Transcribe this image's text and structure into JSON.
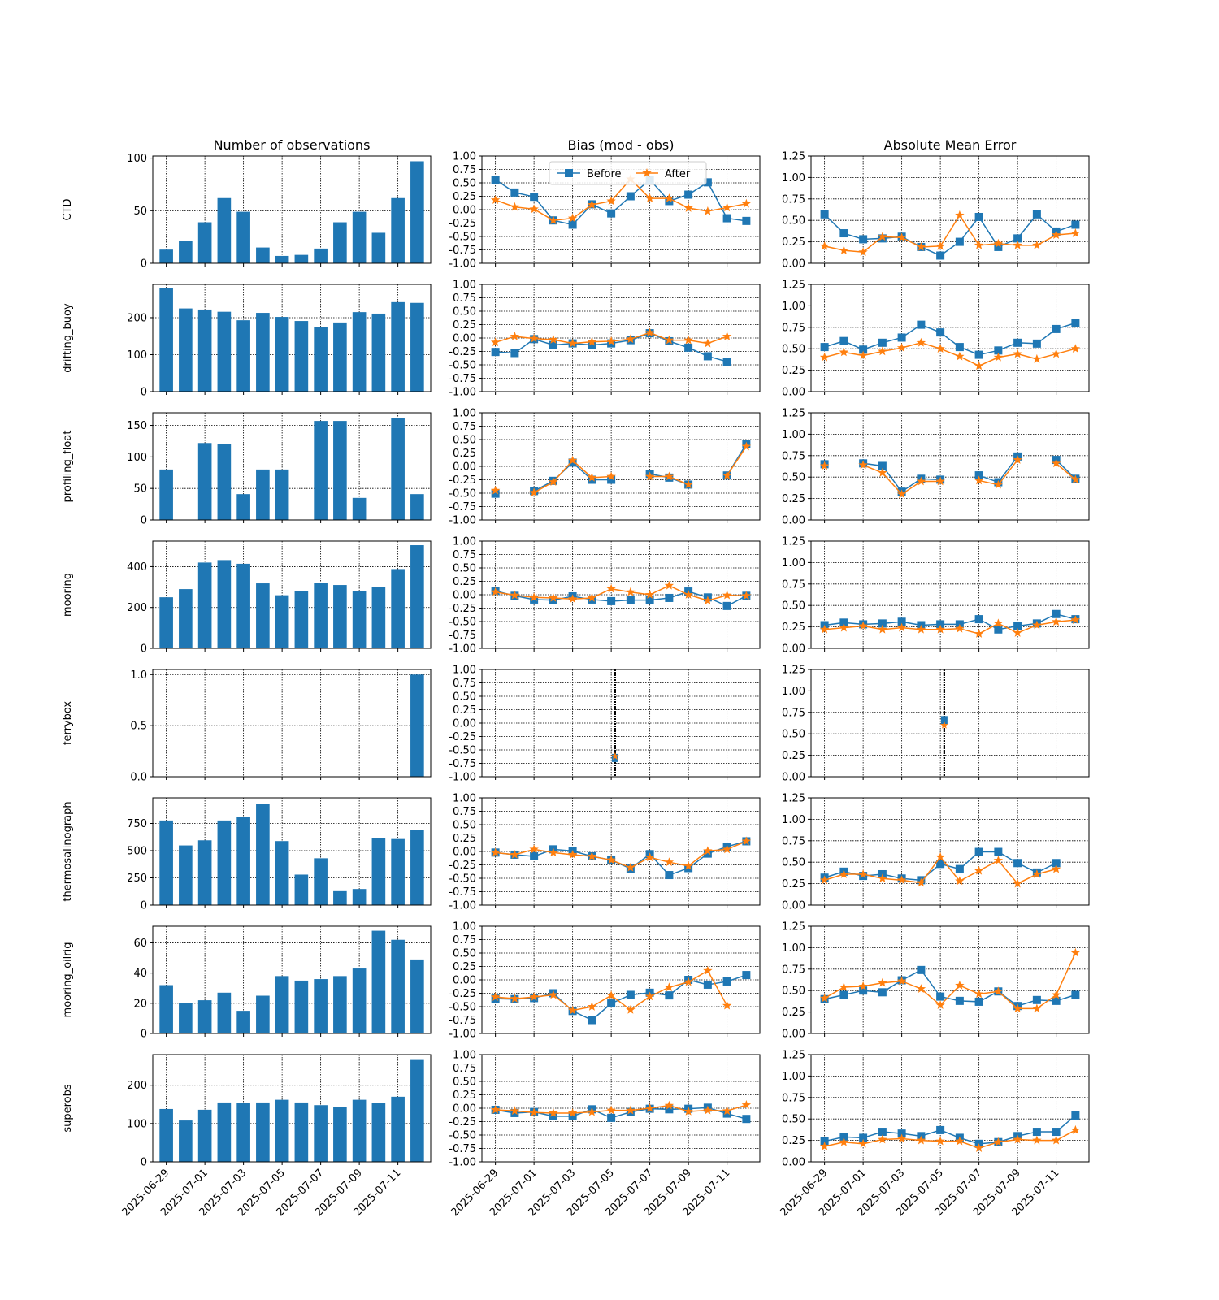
{
  "chart_data": {
    "type": "figure",
    "dates": [
      "2025-06-29",
      "2025-06-30",
      "2025-07-01",
      "2025-07-02",
      "2025-07-03",
      "2025-07-04",
      "2025-07-05",
      "2025-07-06",
      "2025-07-07",
      "2025-07-08",
      "2025-07-09",
      "2025-07-10",
      "2025-07-11",
      "2025-07-12"
    ],
    "date_ticks": [
      "2025-06-29",
      "2025-07-01",
      "2025-07-03",
      "2025-07-05",
      "2025-07-07",
      "2025-07-09",
      "2025-07-11"
    ],
    "column_titles": [
      "Number of observations",
      "Bias (mod - obs)",
      "Absolute Mean Error"
    ],
    "legend": {
      "labels": [
        "Before",
        "After"
      ],
      "placement": "upper center"
    },
    "colors": {
      "bars": "#1f77b4",
      "before": "#1f77b4",
      "after": "#ff7f0e"
    },
    "grid": true,
    "bias_axis": {
      "ylim": [
        -1.0,
        1.0
      ],
      "ticks": [
        "-1.00",
        "-0.75",
        "-0.50",
        "-0.25",
        "0.00",
        "0.25",
        "0.50",
        "0.75",
        "1.00"
      ]
    },
    "ame_axis": {
      "ylim": [
        0.0,
        1.25
      ],
      "ticks": [
        "0.00",
        "0.25",
        "0.50",
        "0.75",
        "1.00",
        "1.25"
      ]
    },
    "rows": [
      {
        "name": "CTD",
        "count_ylim": [
          0,
          102
        ],
        "count_ticks": [
          "0",
          "50",
          "100"
        ],
        "counts": [
          13,
          21,
          39,
          62,
          49,
          15,
          7,
          8,
          14,
          39,
          49,
          29,
          62,
          97
        ],
        "bias_before": [
          0.56,
          0.32,
          0.24,
          -0.2,
          -0.28,
          0.1,
          -0.07,
          0.25,
          0.56,
          0.16,
          0.28,
          0.51,
          -0.16,
          -0.21
        ],
        "bias_after": [
          0.18,
          0.05,
          0.01,
          -0.2,
          -0.16,
          0.09,
          0.16,
          0.57,
          0.21,
          0.21,
          0.03,
          -0.03,
          0.04,
          0.11
        ],
        "ame_before": [
          0.57,
          0.35,
          0.28,
          0.29,
          0.31,
          0.19,
          0.09,
          0.25,
          0.54,
          0.19,
          0.29,
          0.57,
          0.37,
          0.45
        ],
        "ame_after": [
          0.2,
          0.15,
          0.13,
          0.31,
          0.3,
          0.19,
          0.2,
          0.56,
          0.21,
          0.23,
          0.21,
          0.21,
          0.33,
          0.35
        ]
      },
      {
        "name": "drifting_buoy",
        "count_ylim": [
          0,
          290
        ],
        "count_ticks": [
          "0",
          "100",
          "200"
        ],
        "counts": [
          280,
          225,
          222,
          216,
          193,
          213,
          202,
          191,
          174,
          187,
          215,
          211,
          242,
          240
        ],
        "bias_before": [
          -0.26,
          -0.28,
          -0.02,
          -0.13,
          -0.1,
          -0.13,
          -0.1,
          -0.04,
          0.09,
          -0.06,
          -0.18,
          -0.34,
          -0.44,
          null
        ],
        "bias_after": [
          -0.08,
          0.03,
          -0.01,
          -0.03,
          -0.1,
          -0.07,
          -0.06,
          -0.02,
          0.1,
          -0.04,
          -0.04,
          -0.1,
          0.03,
          null
        ],
        "ame_before": [
          0.52,
          0.59,
          0.49,
          0.57,
          0.63,
          0.78,
          0.69,
          0.52,
          0.43,
          0.48,
          0.57,
          0.56,
          0.73,
          0.8
        ],
        "ame_after": [
          0.4,
          0.46,
          0.42,
          0.47,
          0.51,
          0.57,
          0.5,
          0.41,
          0.3,
          0.4,
          0.44,
          0.38,
          0.44,
          0.5
        ]
      },
      {
        "name": "profiling_float",
        "count_ylim": [
          0,
          170
        ],
        "count_ticks": [
          "0",
          "50",
          "100",
          "150"
        ],
        "counts": [
          80,
          null,
          122,
          121,
          41,
          80,
          80,
          null,
          157,
          157,
          35,
          null,
          162,
          41
        ],
        "bias_before": [
          -0.51,
          null,
          -0.46,
          -0.27,
          0.07,
          -0.25,
          -0.25,
          null,
          -0.14,
          -0.21,
          -0.34,
          null,
          -0.17,
          0.42
        ],
        "bias_after": [
          -0.45,
          null,
          -0.49,
          -0.29,
          0.11,
          -0.21,
          -0.19,
          null,
          -0.19,
          -0.19,
          -0.34,
          null,
          -0.17,
          0.37
        ],
        "ame_before": [
          0.65,
          null,
          0.66,
          0.63,
          0.33,
          0.48,
          0.47,
          null,
          0.52,
          0.44,
          0.74,
          null,
          0.7,
          0.48
        ],
        "ame_after": [
          0.63,
          null,
          0.64,
          0.55,
          0.3,
          0.45,
          0.45,
          null,
          0.46,
          0.41,
          0.7,
          null,
          0.66,
          0.47
        ]
      },
      {
        "name": "mooring",
        "count_ylim": [
          0,
          525
        ],
        "count_ticks": [
          "0",
          "200",
          "400"
        ],
        "counts": [
          250,
          290,
          420,
          432,
          414,
          318,
          260,
          282,
          320,
          310,
          281,
          302,
          388,
          505
        ],
        "bias_before": [
          0.07,
          -0.02,
          -0.09,
          -0.1,
          -0.03,
          -0.09,
          -0.12,
          -0.1,
          -0.1,
          -0.06,
          0.06,
          -0.05,
          -0.21,
          -0.02
        ],
        "bias_after": [
          0.05,
          -0.01,
          -0.05,
          -0.06,
          -0.08,
          -0.06,
          0.11,
          0.05,
          0.0,
          0.17,
          0.0,
          -0.11,
          -0.01,
          -0.02
        ],
        "ame_before": [
          0.27,
          0.3,
          0.28,
          0.29,
          0.31,
          0.27,
          0.28,
          0.28,
          0.34,
          0.22,
          0.26,
          0.29,
          0.4,
          0.34
        ],
        "ame_after": [
          0.22,
          0.24,
          0.26,
          0.22,
          0.24,
          0.22,
          0.22,
          0.23,
          0.17,
          0.29,
          0.18,
          0.27,
          0.31,
          0.33
        ]
      },
      {
        "name": "ferrybox",
        "count_ylim": [
          0,
          1.05
        ],
        "count_ticks": [
          "0.0",
          "0.5",
          "1.0"
        ],
        "counts": [
          null,
          null,
          null,
          null,
          null,
          null,
          null,
          null,
          null,
          null,
          null,
          null,
          null,
          1
        ],
        "bias_before": [
          null,
          null,
          null,
          null,
          null,
          null,
          -0.65,
          null,
          null,
          null,
          null,
          null,
          null,
          null
        ],
        "bias_after": [
          null,
          null,
          null,
          null,
          null,
          null,
          -0.62,
          null,
          null,
          null,
          null,
          null,
          null,
          null
        ],
        "ame_before": [
          null,
          null,
          null,
          null,
          null,
          null,
          0.66,
          null,
          null,
          null,
          null,
          null,
          null,
          null
        ],
        "ame_after": [
          null,
          null,
          null,
          null,
          null,
          null,
          0.6,
          null,
          null,
          null,
          null,
          null,
          null,
          null
        ]
      },
      {
        "name": "thermosalinograph",
        "count_ylim": [
          0,
          985
        ],
        "count_ticks": [
          "0",
          "250",
          "500",
          "750"
        ],
        "counts": [
          777,
          548,
          595,
          777,
          810,
          932,
          588,
          280,
          430,
          128,
          148,
          618,
          607,
          692
        ],
        "bias_before": [
          -0.02,
          -0.06,
          -0.09,
          0.04,
          0.01,
          -0.09,
          -0.16,
          -0.32,
          -0.05,
          -0.44,
          -0.31,
          -0.04,
          0.09,
          0.19
        ],
        "bias_after": [
          -0.02,
          -0.06,
          0.04,
          -0.02,
          -0.06,
          -0.09,
          -0.16,
          -0.3,
          -0.11,
          -0.2,
          -0.27,
          0.01,
          0.04,
          0.19
        ],
        "ame_before": [
          0.32,
          0.39,
          0.34,
          0.36,
          0.31,
          0.29,
          0.48,
          0.42,
          0.62,
          0.62,
          0.49,
          0.38,
          0.49,
          null
        ],
        "ame_after": [
          0.29,
          0.36,
          0.36,
          0.31,
          0.29,
          0.26,
          0.56,
          0.28,
          0.4,
          0.52,
          0.25,
          0.36,
          0.42,
          null
        ]
      },
      {
        "name": "mooring_oilrig",
        "count_ylim": [
          0,
          71
        ],
        "count_ticks": [
          "0",
          "20",
          "40",
          "60"
        ],
        "counts": [
          32,
          20,
          22,
          27,
          15,
          25,
          38,
          35,
          36,
          38,
          43,
          68,
          62,
          49
        ],
        "bias_before": [
          -0.35,
          -0.36,
          -0.34,
          -0.25,
          -0.58,
          -0.75,
          -0.44,
          -0.28,
          -0.24,
          -0.29,
          0.0,
          -0.09,
          -0.03,
          0.09
        ],
        "bias_after": [
          -0.32,
          -0.35,
          -0.32,
          -0.28,
          -0.57,
          -0.5,
          -0.29,
          -0.56,
          -0.31,
          -0.14,
          -0.04,
          0.17,
          -0.48,
          null
        ],
        "ame_before": [
          0.4,
          0.45,
          0.5,
          0.48,
          0.62,
          0.74,
          0.43,
          0.38,
          0.37,
          0.49,
          0.32,
          0.39,
          0.38,
          0.45
        ],
        "ame_after": [
          0.41,
          0.54,
          0.55,
          0.59,
          0.61,
          0.52,
          0.33,
          0.56,
          0.46,
          0.49,
          0.29,
          0.29,
          0.45,
          0.94
        ]
      },
      {
        "name": "superobs",
        "count_ylim": [
          0,
          280
        ],
        "count_ticks": [
          "0",
          "100",
          "200"
        ],
        "counts": [
          138,
          108,
          136,
          155,
          154,
          155,
          162,
          155,
          148,
          144,
          162,
          153,
          170,
          266
        ],
        "bias_before": [
          -0.03,
          -0.09,
          -0.07,
          -0.15,
          -0.15,
          -0.02,
          -0.18,
          -0.07,
          -0.01,
          -0.02,
          -0.01,
          0.01,
          -0.1,
          -0.2
        ],
        "bias_after": [
          -0.03,
          -0.05,
          -0.08,
          -0.09,
          -0.09,
          -0.07,
          -0.04,
          -0.04,
          0.0,
          0.05,
          -0.06,
          -0.04,
          -0.05,
          0.06
        ],
        "ame_before": [
          0.24,
          0.29,
          0.28,
          0.35,
          0.33,
          0.3,
          0.37,
          0.28,
          0.21,
          0.23,
          0.3,
          0.35,
          0.35,
          0.54
        ],
        "ame_after": [
          0.18,
          0.23,
          0.21,
          0.26,
          0.27,
          0.25,
          0.24,
          0.24,
          0.16,
          0.23,
          0.26,
          0.25,
          0.25,
          0.37
        ]
      }
    ]
  }
}
